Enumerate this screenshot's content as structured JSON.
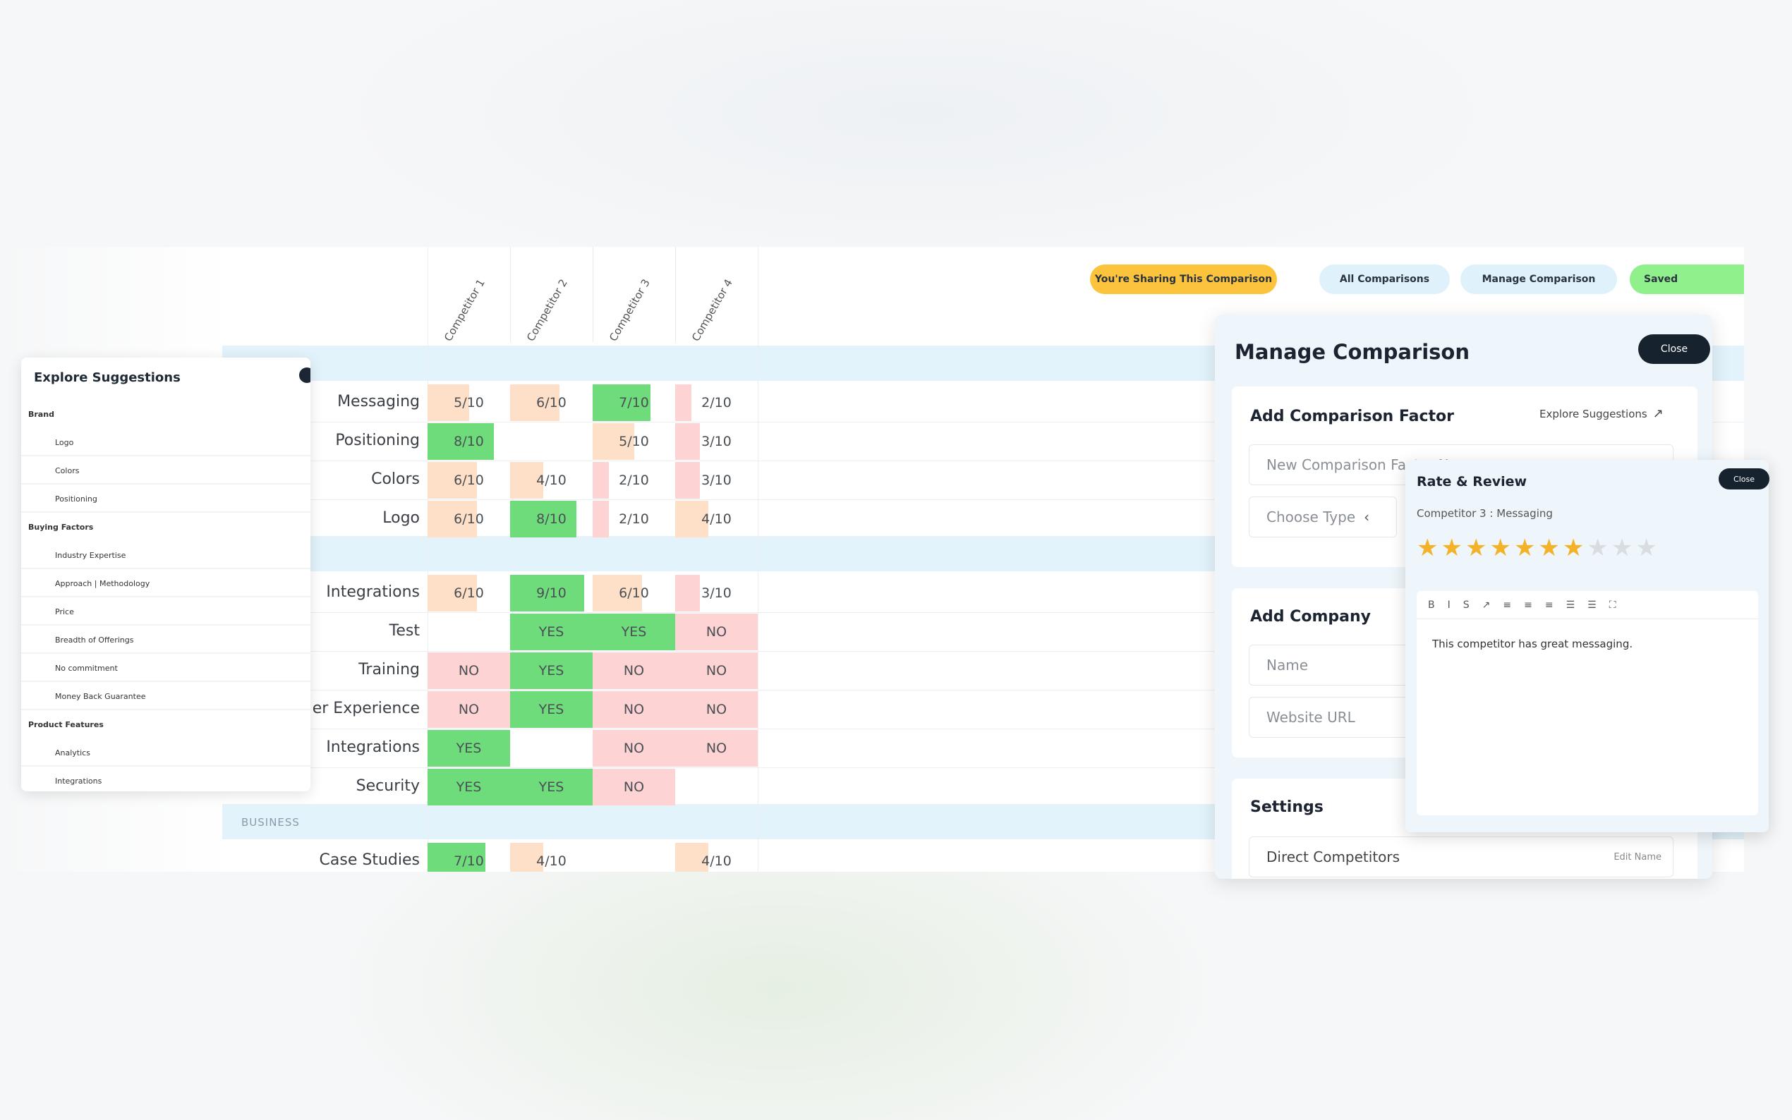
{
  "top_buttons": [
    {
      "label": "You're Sharing This Comparison",
      "color": "#fcc33d"
    },
    {
      "label": "All Comparisons",
      "color": "#dff1fa"
    },
    {
      "label": "Manage Comparison",
      "color": "#dff1fa"
    },
    {
      "label": "Saved",
      "color": "#8ff08c"
    }
  ],
  "competitors": [
    "Competitor 1",
    "Competitor 2",
    "Competitor 3",
    "Competitor 4"
  ],
  "sections": {
    "business": "BUSINESS"
  },
  "rows": [
    {
      "label": "Messaging",
      "cells": [
        {
          "text": "5/10",
          "kind": "orange",
          "level": 0.5
        },
        {
          "text": "6/10",
          "kind": "orange",
          "level": 0.6
        },
        {
          "text": "7/10",
          "kind": "green",
          "level": 0.7
        },
        {
          "text": "2/10",
          "kind": "red",
          "level": 0.2
        }
      ]
    },
    {
      "label": "Positioning",
      "cells": [
        {
          "text": "8/10",
          "kind": "green",
          "level": 0.8
        },
        {
          "text": "",
          "kind": "none",
          "level": 0
        },
        {
          "text": "5/10",
          "kind": "orange",
          "level": 0.5
        },
        {
          "text": "3/10",
          "kind": "red",
          "level": 0.3
        }
      ]
    },
    {
      "label": "Colors",
      "cells": [
        {
          "text": "6/10",
          "kind": "orange",
          "level": 0.6
        },
        {
          "text": "4/10",
          "kind": "orange",
          "level": 0.4
        },
        {
          "text": "2/10",
          "kind": "red",
          "level": 0.2
        },
        {
          "text": "3/10",
          "kind": "red",
          "level": 0.3
        }
      ]
    },
    {
      "label": "Logo",
      "cells": [
        {
          "text": "6/10",
          "kind": "orange",
          "level": 0.6
        },
        {
          "text": "8/10",
          "kind": "green",
          "level": 0.8
        },
        {
          "text": "2/10",
          "kind": "red",
          "level": 0.2
        },
        {
          "text": "4/10",
          "kind": "orange",
          "level": 0.4
        }
      ]
    },
    {
      "label": "Integrations",
      "cells": [
        {
          "text": "6/10",
          "kind": "orange",
          "level": 0.6
        },
        {
          "text": "9/10",
          "kind": "green",
          "level": 0.9
        },
        {
          "text": "6/10",
          "kind": "orange",
          "level": 0.6
        },
        {
          "text": "3/10",
          "kind": "red",
          "level": 0.3
        }
      ]
    },
    {
      "label": "Test",
      "cells": [
        {
          "text": "",
          "kind": "none",
          "level": 0
        },
        {
          "text": "YES",
          "kind": "green",
          "level": 1
        },
        {
          "text": "YES",
          "kind": "green",
          "level": 1
        },
        {
          "text": "NO",
          "kind": "red",
          "level": 1
        }
      ]
    },
    {
      "label": "Training",
      "cells": [
        {
          "text": "NO",
          "kind": "red",
          "level": 1
        },
        {
          "text": "YES",
          "kind": "green",
          "level": 1
        },
        {
          "text": "NO",
          "kind": "red",
          "level": 1
        },
        {
          "text": "NO",
          "kind": "red",
          "level": 1
        }
      ]
    },
    {
      "label": "er Experience",
      "cells": [
        {
          "text": "NO",
          "kind": "red",
          "level": 1
        },
        {
          "text": "YES",
          "kind": "green",
          "level": 1
        },
        {
          "text": "NO",
          "kind": "red",
          "level": 1
        },
        {
          "text": "NO",
          "kind": "red",
          "level": 1
        }
      ]
    },
    {
      "label": "Integrations",
      "cells": [
        {
          "text": "YES",
          "kind": "green",
          "level": 1
        },
        {
          "text": "",
          "kind": "none",
          "level": 0
        },
        {
          "text": "NO",
          "kind": "red",
          "level": 1
        },
        {
          "text": "NO",
          "kind": "red",
          "level": 1
        }
      ]
    },
    {
      "label": "Security",
      "cells": [
        {
          "text": "YES",
          "kind": "green",
          "level": 1
        },
        {
          "text": "YES",
          "kind": "green",
          "level": 1
        },
        {
          "text": "NO",
          "kind": "red",
          "level": 1
        },
        {
          "text": "",
          "kind": "none",
          "level": 0
        }
      ]
    },
    {
      "label": "Case Studies",
      "cells": [
        {
          "text": "7/10",
          "kind": "green",
          "level": 0.7
        },
        {
          "text": "4/10",
          "kind": "orange",
          "level": 0.4
        },
        {
          "text": "",
          "kind": "none",
          "level": 0
        },
        {
          "text": "4/10",
          "kind": "orange",
          "level": 0.4
        }
      ]
    }
  ],
  "cell_colors": {
    "green": "#6fdc7c",
    "orange": "#fde0c7",
    "red": "#fdd3d3"
  },
  "explore": {
    "title": "Explore Suggestions",
    "items": [
      {
        "text": "Brand",
        "heading": true
      },
      {
        "text": "Logo",
        "heading": false
      },
      {
        "text": "Colors",
        "heading": false
      },
      {
        "text": "Positioning",
        "heading": false
      },
      {
        "text": "Buying Factors",
        "heading": true
      },
      {
        "text": "Industry Expertise",
        "heading": false
      },
      {
        "text": "Approach | Methodology",
        "heading": false
      },
      {
        "text": "Price",
        "heading": false
      },
      {
        "text": "Breadth of Offerings",
        "heading": false
      },
      {
        "text": "No commitment",
        "heading": false
      },
      {
        "text": "Money Back Guarantee",
        "heading": false
      },
      {
        "text": "Product Features",
        "heading": true
      },
      {
        "text": "Analytics",
        "heading": false
      },
      {
        "text": "Integrations",
        "heading": false
      }
    ]
  },
  "manage": {
    "title": "Manage Comparison",
    "close": "Close",
    "add_factor": {
      "title": "Add Comparison Factor",
      "explore_link": "Explore Suggestions",
      "name_placeholder": "New Comparison Factor Name",
      "type_placeholder": "Choose Type"
    },
    "add_company": {
      "title": "Add Company",
      "name_placeholder": "Name",
      "url_placeholder": "Website URL"
    },
    "settings": {
      "title": "Settings",
      "value": "Direct Competitors",
      "edit": "Edit Name"
    }
  },
  "rate_review": {
    "title": "Rate & Review",
    "close": "Close",
    "subtitle": "Competitor 3 : Messaging",
    "rating": 7,
    "max_rating": 10,
    "toolbar": [
      "B",
      "I",
      "S",
      "↗",
      "≡",
      "≡",
      "≡",
      "☰",
      "☰",
      "⛶"
    ],
    "text": "This competitor has great messaging."
  }
}
